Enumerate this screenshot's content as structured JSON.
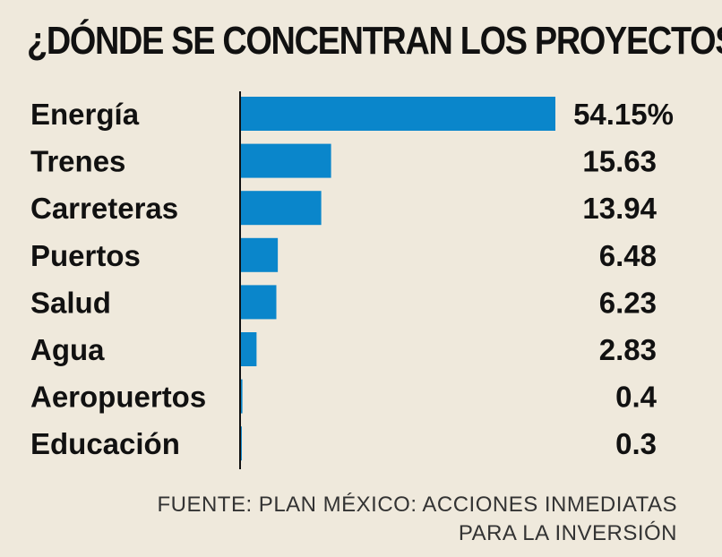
{
  "colors": {
    "background": "#efe9dc",
    "bar": "#0a86cb",
    "text": "#111111"
  },
  "chart_data": {
    "type": "bar",
    "orientation": "horizontal",
    "title": "¿DÓNDE SE CONCENTRAN LOS PROYECTOS?",
    "categories": [
      "Energía",
      "Trenes",
      "Carreteras",
      "Puertos",
      "Salud",
      "Agua",
      "Aeropuertos",
      "Educación"
    ],
    "values": [
      54.15,
      15.63,
      13.94,
      6.48,
      6.23,
      2.83,
      0.4,
      0.3
    ],
    "value_labels": [
      "54.15%",
      "15.63",
      "13.94",
      "6.48",
      "6.23",
      "2.83",
      "0.4",
      "0.3"
    ],
    "xlim": [
      0,
      54.15
    ],
    "grid": false,
    "source_lines": [
      "FUENTE: PLAN MÉXICO: ACCIONES INMEDIATAS",
      "PARA LA INVERSIÓN"
    ]
  }
}
